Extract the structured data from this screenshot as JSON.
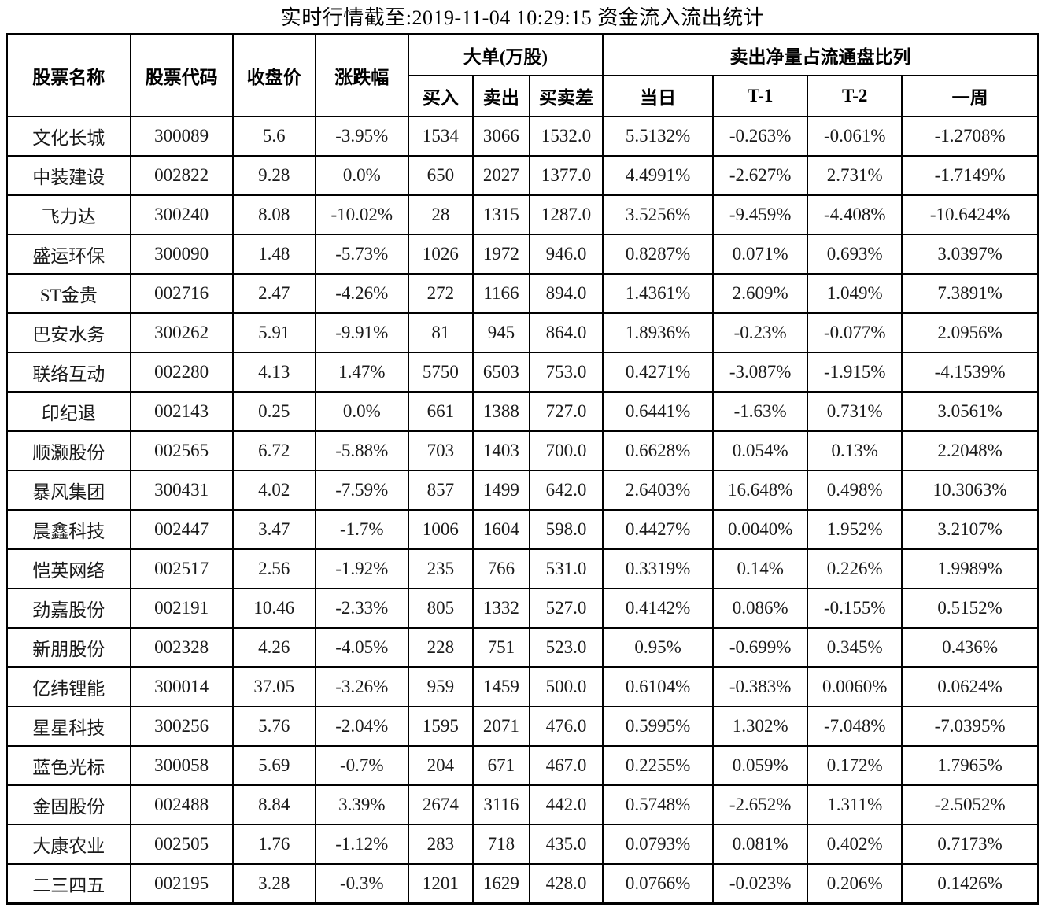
{
  "title": "实时行情截至:2019-11-04 10:29:15 资金流入流出统计",
  "colors": {
    "stock_name_blue": "#2b5f97",
    "stock_code_blue": "#3a6fa8",
    "text_black": "#1a1a1a",
    "border_black": "#000000",
    "background": "#ffffff"
  },
  "chart_data": {
    "type": "table",
    "title": "实时行情截至:2019-11-04 10:29:15 资金流入流出统计",
    "column_groups": [
      {
        "label": "大单(万股)",
        "span": [
          "买入",
          "卖出",
          "买卖差"
        ]
      },
      {
        "label": "卖出净量占流通盘比列",
        "span": [
          "当日",
          "T-1",
          "T-2",
          "一周"
        ]
      }
    ],
    "columns": [
      "股票名称",
      "股票代码",
      "收盘价",
      "涨跌幅",
      "买入",
      "卖出",
      "买卖差",
      "当日",
      "T-1",
      "T-2",
      "一周"
    ],
    "column_keys": [
      "stock-name",
      "stock-code",
      "close-price",
      "change-pct",
      "buy",
      "sell",
      "buy-sell-diff",
      "day",
      "t-1",
      "t-2",
      "week"
    ],
    "rows": [
      [
        "文化长城",
        "300089",
        "5.6",
        "-3.95%",
        "1534",
        "3066",
        "1532.0",
        "5.5132%",
        "-0.263%",
        "-0.061%",
        "-1.2708%"
      ],
      [
        "中装建设",
        "002822",
        "9.28",
        "0.0%",
        "650",
        "2027",
        "1377.0",
        "4.4991%",
        "-2.627%",
        "2.731%",
        "-1.7149%"
      ],
      [
        "飞力达",
        "300240",
        "8.08",
        "-10.02%",
        "28",
        "1315",
        "1287.0",
        "3.5256%",
        "-9.459%",
        "-4.408%",
        "-10.6424%"
      ],
      [
        "盛运环保",
        "300090",
        "1.48",
        "-5.73%",
        "1026",
        "1972",
        "946.0",
        "0.8287%",
        "0.071%",
        "0.693%",
        "3.0397%"
      ],
      [
        "ST金贵",
        "002716",
        "2.47",
        "-4.26%",
        "272",
        "1166",
        "894.0",
        "1.4361%",
        "2.609%",
        "1.049%",
        "7.3891%"
      ],
      [
        "巴安水务",
        "300262",
        "5.91",
        "-9.91%",
        "81",
        "945",
        "864.0",
        "1.8936%",
        "-0.23%",
        "-0.077%",
        "2.0956%"
      ],
      [
        "联络互动",
        "002280",
        "4.13",
        "1.47%",
        "5750",
        "6503",
        "753.0",
        "0.4271%",
        "-3.087%",
        "-1.915%",
        "-4.1539%"
      ],
      [
        "印纪退",
        "002143",
        "0.25",
        "0.0%",
        "661",
        "1388",
        "727.0",
        "0.6441%",
        "-1.63%",
        "0.731%",
        "3.0561%"
      ],
      [
        "顺灏股份",
        "002565",
        "6.72",
        "-5.88%",
        "703",
        "1403",
        "700.0",
        "0.6628%",
        "0.054%",
        "0.13%",
        "2.2048%"
      ],
      [
        "暴风集团",
        "300431",
        "4.02",
        "-7.59%",
        "857",
        "1499",
        "642.0",
        "2.6403%",
        "16.648%",
        "0.498%",
        "10.3063%"
      ],
      [
        "晨鑫科技",
        "002447",
        "3.47",
        "-1.7%",
        "1006",
        "1604",
        "598.0",
        "0.4427%",
        "0.0040%",
        "1.952%",
        "3.2107%"
      ],
      [
        "恺英网络",
        "002517",
        "2.56",
        "-1.92%",
        "235",
        "766",
        "531.0",
        "0.3319%",
        "0.14%",
        "0.226%",
        "1.9989%"
      ],
      [
        "劲嘉股份",
        "002191",
        "10.46",
        "-2.33%",
        "805",
        "1332",
        "527.0",
        "0.4142%",
        "0.086%",
        "-0.155%",
        "0.5152%"
      ],
      [
        "新朋股份",
        "002328",
        "4.26",
        "-4.05%",
        "228",
        "751",
        "523.0",
        "0.95%",
        "-0.699%",
        "0.345%",
        "0.436%"
      ],
      [
        "亿纬锂能",
        "300014",
        "37.05",
        "-3.26%",
        "959",
        "1459",
        "500.0",
        "0.6104%",
        "-0.383%",
        "0.0060%",
        "0.0624%"
      ],
      [
        "星星科技",
        "300256",
        "5.76",
        "-2.04%",
        "1595",
        "2071",
        "476.0",
        "0.5995%",
        "1.302%",
        "-7.048%",
        "-7.0395%"
      ],
      [
        "蓝色光标",
        "300058",
        "5.69",
        "-0.7%",
        "204",
        "671",
        "467.0",
        "0.2255%",
        "0.059%",
        "0.172%",
        "1.7965%"
      ],
      [
        "金固股份",
        "002488",
        "8.84",
        "3.39%",
        "2674",
        "3116",
        "442.0",
        "0.5748%",
        "-2.652%",
        "1.311%",
        "-2.5052%"
      ],
      [
        "大康农业",
        "002505",
        "1.76",
        "-1.12%",
        "283",
        "718",
        "435.0",
        "0.0793%",
        "0.081%",
        "0.402%",
        "0.7173%"
      ],
      [
        "二三四五",
        "002195",
        "3.28",
        "-0.3%",
        "1201",
        "1629",
        "428.0",
        "0.0766%",
        "-0.023%",
        "0.206%",
        "0.1426%"
      ]
    ]
  }
}
